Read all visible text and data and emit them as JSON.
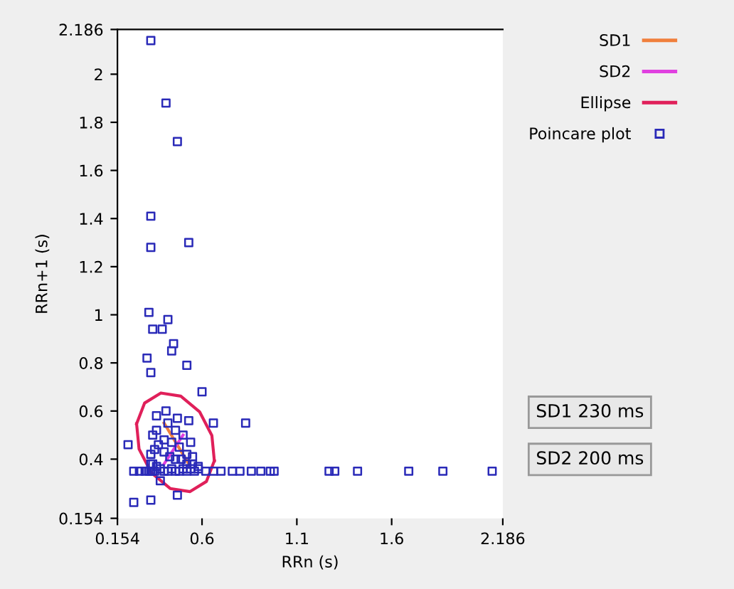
{
  "chart_data": {
    "type": "line",
    "xlabel": "RRn (s)",
    "ylabel": "RRn+1 (s)",
    "xlim": [
      0.154,
      2.186
    ],
    "ylim": [
      0.154,
      2.186
    ],
    "xticks": [
      0.154,
      0.6,
      1.1,
      1.6,
      2.186
    ],
    "yticks": [
      0.154,
      0.4,
      0.6,
      0.8,
      1,
      1.2,
      1.4,
      1.6,
      1.8,
      2,
      2.186
    ],
    "grid": false,
    "legend": "top right",
    "series": [
      {
        "name": "SD1",
        "color": "#f07f3c",
        "x": [
          0.4,
          0.53
        ],
        "values": [
          0.55,
          0.38
        ]
      },
      {
        "name": "SD2",
        "color": "#e040e0",
        "x": [
          0.4,
          0.5
        ],
        "values": [
          0.38,
          0.5
        ]
      },
      {
        "name": "Ellipse",
        "type": "line",
        "color": "#e0205a",
        "x": [
          0.255,
          0.297,
          0.383,
          0.488,
          0.587,
          0.652,
          0.665
        ],
        "values": [
          0.547,
          0.633,
          0.675,
          0.662,
          0.597,
          0.498,
          0.393
        ]
      },
      {
        "type": "line",
        "color": "#e0205a",
        "x": [
          0.255,
          0.268,
          0.333,
          0.432,
          0.537,
          0.623,
          0.665
        ],
        "values": [
          0.547,
          0.442,
          0.343,
          0.278,
          0.265,
          0.307,
          0.393
        ]
      },
      {
        "name": "Poincare plot",
        "type": "scatter",
        "marker": "square",
        "color": "#2a2ab8",
        "x": [
          0.33,
          0.41,
          0.47,
          0.33,
          0.33,
          0.53,
          0.32,
          0.34,
          0.39,
          0.42,
          0.45,
          0.44,
          0.31,
          0.33,
          0.52,
          0.6,
          0.83,
          0.66,
          0.21,
          0.24,
          0.47,
          0.33,
          0.76,
          0.8,
          0.86,
          0.91,
          0.96,
          0.98,
          1.27,
          1.3,
          1.42,
          1.69,
          1.87,
          2.13,
          0.24,
          0.27,
          0.3,
          0.32,
          0.33,
          0.34,
          0.35,
          0.33,
          0.34,
          0.36,
          0.38,
          0.4,
          0.42,
          0.44,
          0.46,
          0.48,
          0.5,
          0.52,
          0.54,
          0.56,
          0.58,
          0.62,
          0.66,
          0.7,
          0.33,
          0.35,
          0.37,
          0.4,
          0.43,
          0.46,
          0.49,
          0.52,
          0.55,
          0.58,
          0.34,
          0.36,
          0.4,
          0.44,
          0.48,
          0.52,
          0.55,
          0.42,
          0.46,
          0.5,
          0.54,
          0.36,
          0.41,
          0.47,
          0.53,
          0.38
        ],
        "values": [
          2.14,
          1.88,
          1.72,
          1.41,
          1.28,
          1.3,
          1.01,
          0.94,
          0.94,
          0.98,
          0.88,
          0.85,
          0.82,
          0.76,
          0.79,
          0.68,
          0.55,
          0.55,
          0.46,
          0.22,
          0.25,
          0.23,
          0.35,
          0.35,
          0.35,
          0.35,
          0.35,
          0.35,
          0.35,
          0.35,
          0.35,
          0.35,
          0.35,
          0.35,
          0.35,
          0.35,
          0.35,
          0.35,
          0.35,
          0.35,
          0.35,
          0.38,
          0.38,
          0.37,
          0.36,
          0.35,
          0.35,
          0.36,
          0.35,
          0.35,
          0.36,
          0.35,
          0.36,
          0.35,
          0.36,
          0.35,
          0.35,
          0.35,
          0.42,
          0.44,
          0.46,
          0.43,
          0.41,
          0.4,
          0.4,
          0.38,
          0.38,
          0.37,
          0.5,
          0.52,
          0.48,
          0.47,
          0.45,
          0.42,
          0.41,
          0.55,
          0.52,
          0.5,
          0.47,
          0.58,
          0.6,
          0.57,
          0.56,
          0.31
        ]
      }
    ],
    "annotations": [
      "SD1 230 ms",
      "SD2 200 ms"
    ]
  }
}
